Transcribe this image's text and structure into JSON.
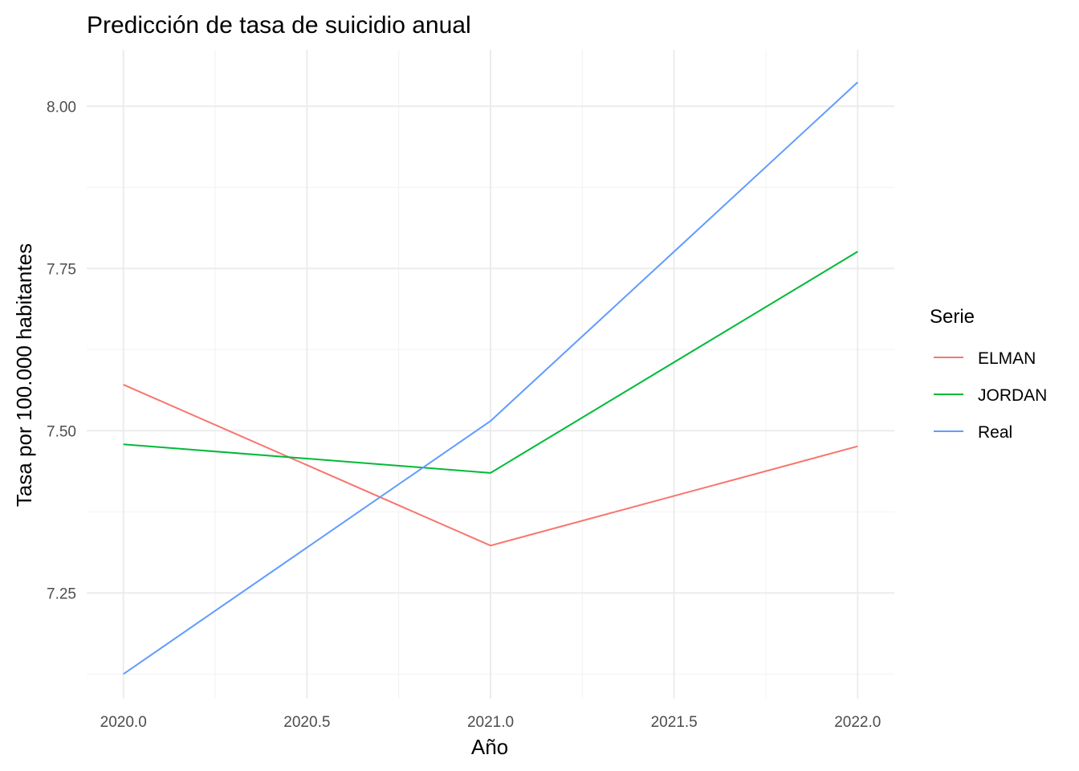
{
  "chart_data": {
    "type": "line",
    "title": "Predicción de tasa de suicidio anual",
    "xlabel": "Año",
    "ylabel": "Tasa por 100.000 habitantes",
    "x": [
      2020,
      2021,
      2022
    ],
    "xlim": [
      2019.9,
      2022.1
    ],
    "ylim": [
      7.087,
      8.087
    ],
    "x_ticks": [
      2020.0,
      2020.5,
      2021.0,
      2021.5,
      2022.0
    ],
    "x_tick_labels": [
      "2020.0",
      "2020.5",
      "2021.0",
      "2021.5",
      "2022.0"
    ],
    "y_ticks": [
      7.25,
      7.5,
      7.75,
      8.0
    ],
    "y_tick_labels": [
      "7.25",
      "7.50",
      "7.75",
      "8.00"
    ],
    "y_minor_ticks": [
      7.125,
      7.375,
      7.625,
      7.875
    ],
    "x_minor_ticks": [
      2020.25,
      2020.75,
      2021.25,
      2021.75
    ],
    "grid": true,
    "legend": {
      "title": "Serie",
      "position": "right"
    },
    "series": [
      {
        "name": "ELMAN",
        "color": "#F8766D",
        "values": [
          7.571,
          7.323,
          7.476
        ]
      },
      {
        "name": "JORDAN",
        "color": "#00BA38",
        "values": [
          7.479,
          7.435,
          7.776
        ]
      },
      {
        "name": "Real",
        "color": "#619CFF",
        "values": [
          7.125,
          7.515,
          8.037
        ]
      }
    ]
  }
}
